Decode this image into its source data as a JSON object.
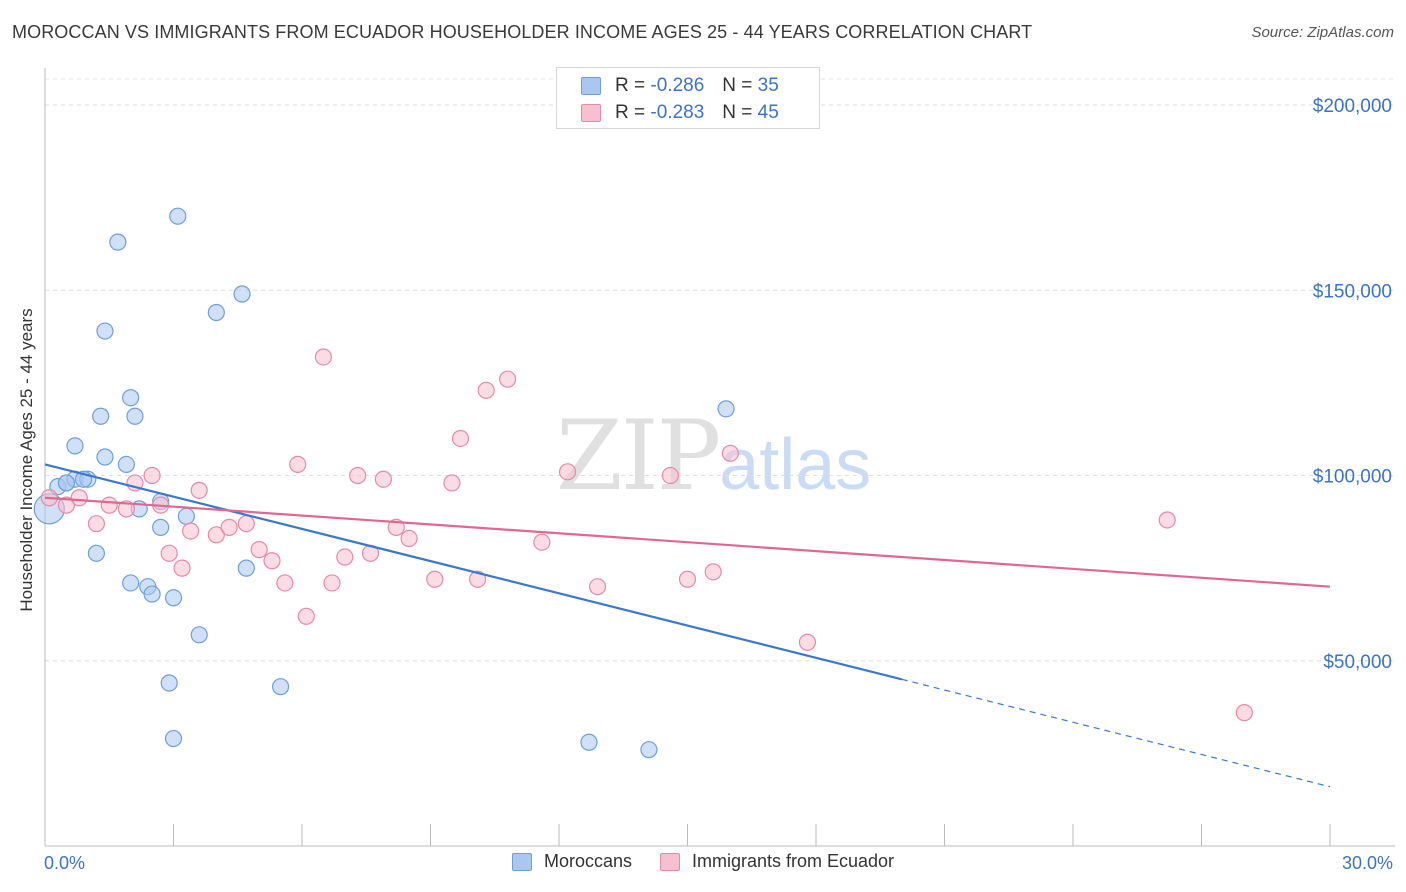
{
  "title": "MOROCCAN VS IMMIGRANTS FROM ECUADOR HOUSEHOLDER INCOME AGES 25 - 44 YEARS CORRELATION CHART",
  "source": "Source: ZipAtlas.com",
  "watermark": {
    "zip": "ZIP",
    "atlas": "atlas"
  },
  "legend": {
    "r_label": "R =",
    "n_label": "N =",
    "rows": [
      {
        "r": "-0.286",
        "n": "35",
        "color": "#a9c7ef",
        "edge": "#6e9fdc"
      },
      {
        "r": "-0.283",
        "n": "45",
        "color": "#f7c0d0",
        "edge": "#e58aa8"
      }
    ]
  },
  "chart_data": {
    "type": "scatter",
    "xlabel": "",
    "ylabel": "Householder Income Ages 25 - 44 years",
    "xlim": [
      0,
      30
    ],
    "ylim": [
      0,
      210000
    ],
    "x_tick_labels": [
      "0.0%",
      "30.0%"
    ],
    "y_ticks": [
      50000,
      100000,
      150000,
      200000
    ],
    "y_tick_labels": [
      "$50,000",
      "$100,000",
      "$150,000",
      "$200,000"
    ],
    "grid": true,
    "series": [
      {
        "name": "Moroccans",
        "color": "#a9c7ef",
        "edge": "#6e9fdc",
        "line_color": "#3a78d0",
        "trend": {
          "x0": 0,
          "y0": 103000,
          "x1": 20,
          "y1": 45000,
          "x_dash_end": 30,
          "y_dash_end": 16000
        },
        "points": [
          [
            0.1,
            91000
          ],
          [
            0.3,
            97000
          ],
          [
            0.5,
            98000
          ],
          [
            0.7,
            99000
          ],
          [
            1.0,
            99000
          ],
          [
            0.7,
            108000
          ],
          [
            1.3,
            116000
          ],
          [
            1.4,
            105000
          ],
          [
            2.1,
            116000
          ],
          [
            2.0,
            121000
          ],
          [
            1.4,
            139000
          ],
          [
            1.7,
            163000
          ],
          [
            2.2,
            91000
          ],
          [
            2.4,
            70000
          ],
          [
            2.7,
            86000
          ],
          [
            3.0,
            67000
          ],
          [
            3.3,
            89000
          ],
          [
            3.6,
            57000
          ],
          [
            4.0,
            144000
          ],
          [
            4.6,
            149000
          ],
          [
            4.7,
            75000
          ],
          [
            5.5,
            43000
          ],
          [
            3.1,
            170000
          ],
          [
            2.0,
            71000
          ],
          [
            3.0,
            29000
          ],
          [
            2.9,
            44000
          ],
          [
            2.5,
            68000
          ],
          [
            12.7,
            28000
          ],
          [
            14.1,
            26000
          ],
          [
            15.9,
            118000
          ],
          [
            0.5,
            98000
          ],
          [
            0.9,
            99000
          ],
          [
            1.2,
            79000
          ],
          [
            1.9,
            103000
          ],
          [
            2.7,
            93000
          ]
        ]
      },
      {
        "name": "Immigrants from Ecuador",
        "color": "#f7c0d0",
        "edge": "#e58aa8",
        "line_color": "#e06890",
        "trend": {
          "x0": 0,
          "y0": 94000,
          "x1": 30,
          "y1": 70000
        },
        "points": [
          [
            0.1,
            94000
          ],
          [
            0.5,
            92000
          ],
          [
            0.8,
            94000
          ],
          [
            1.2,
            87000
          ],
          [
            1.5,
            92000
          ],
          [
            1.9,
            91000
          ],
          [
            2.1,
            98000
          ],
          [
            2.5,
            100000
          ],
          [
            2.7,
            92000
          ],
          [
            2.9,
            79000
          ],
          [
            3.2,
            75000
          ],
          [
            3.4,
            85000
          ],
          [
            3.6,
            96000
          ],
          [
            4.0,
            84000
          ],
          [
            4.3,
            86000
          ],
          [
            4.7,
            87000
          ],
          [
            5.0,
            80000
          ],
          [
            5.3,
            77000
          ],
          [
            5.6,
            71000
          ],
          [
            5.9,
            103000
          ],
          [
            6.1,
            62000
          ],
          [
            6.5,
            132000
          ],
          [
            6.7,
            71000
          ],
          [
            7.0,
            78000
          ],
          [
            7.3,
            100000
          ],
          [
            7.6,
            79000
          ],
          [
            7.9,
            99000
          ],
          [
            8.2,
            86000
          ],
          [
            8.5,
            83000
          ],
          [
            9.1,
            72000
          ],
          [
            9.5,
            98000
          ],
          [
            9.7,
            110000
          ],
          [
            10.1,
            72000
          ],
          [
            10.3,
            123000
          ],
          [
            10.8,
            126000
          ],
          [
            11.6,
            82000
          ],
          [
            12.2,
            101000
          ],
          [
            12.9,
            70000
          ],
          [
            14.6,
            100000
          ],
          [
            15.0,
            72000
          ],
          [
            15.6,
            74000
          ],
          [
            16.0,
            106000
          ],
          [
            17.8,
            55000
          ],
          [
            26.2,
            88000
          ],
          [
            28.0,
            36000
          ]
        ]
      }
    ]
  }
}
